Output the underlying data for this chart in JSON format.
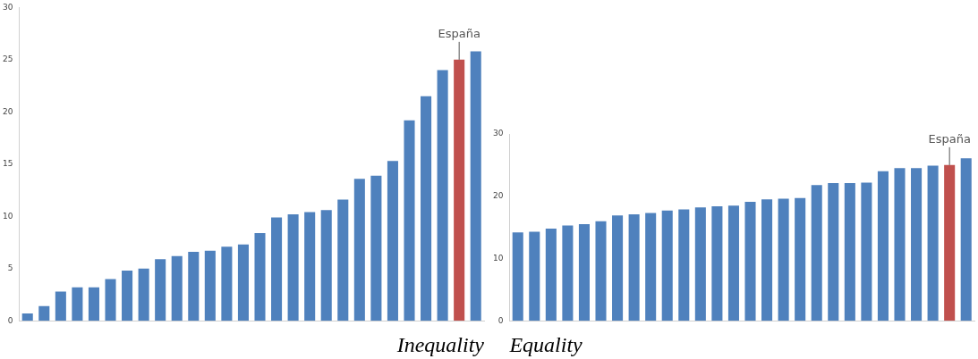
{
  "chart_data": [
    {
      "type": "bar",
      "xlabel": "Inequality",
      "categories": [
        null,
        null,
        null,
        null,
        null,
        null,
        null,
        null,
        null,
        null,
        null,
        null,
        null,
        null,
        null,
        null,
        null,
        null,
        null,
        null,
        null,
        null,
        null,
        null,
        null,
        null,
        null,
        null
      ],
      "values": [
        0.7,
        1.4,
        2.8,
        3.2,
        3.2,
        4.0,
        4.8,
        5.0,
        5.9,
        6.2,
        6.6,
        6.7,
        7.1,
        7.3,
        8.4,
        9.9,
        10.2,
        10.4,
        10.6,
        11.6,
        13.6,
        13.9,
        15.3,
        19.2,
        21.5,
        24.0,
        25.0,
        25.8
      ],
      "colors": [
        "#4f81bd",
        "#4f81bd",
        "#4f81bd",
        "#4f81bd",
        "#4f81bd",
        "#4f81bd",
        "#4f81bd",
        "#4f81bd",
        "#4f81bd",
        "#4f81bd",
        "#4f81bd",
        "#4f81bd",
        "#4f81bd",
        "#4f81bd",
        "#4f81bd",
        "#4f81bd",
        "#4f81bd",
        "#4f81bd",
        "#4f81bd",
        "#4f81bd",
        "#4f81bd",
        "#4f81bd",
        "#4f81bd",
        "#4f81bd",
        "#4f81bd",
        "#4f81bd",
        "#c0504d",
        "#4f81bd"
      ],
      "ylim": [
        0,
        30
      ],
      "yticks": [
        0,
        5,
        10,
        15,
        20,
        25,
        30
      ],
      "grid": false,
      "legend": false,
      "annotations": [
        {
          "text": "España",
          "y": 25.0
        }
      ]
    },
    {
      "type": "bar",
      "xlabel": "Equality",
      "categories": [
        null,
        null,
        null,
        null,
        null,
        null,
        null,
        null,
        null,
        null,
        null,
        null,
        null,
        null,
        null,
        null,
        null,
        null,
        null,
        null,
        null,
        null,
        null,
        null,
        null,
        null,
        null,
        null
      ],
      "values": [
        14.2,
        14.3,
        14.8,
        15.3,
        15.5,
        16.0,
        16.9,
        17.1,
        17.3,
        17.7,
        17.9,
        18.2,
        18.4,
        18.5,
        19.1,
        19.5,
        19.6,
        19.7,
        21.8,
        22.1,
        22.1,
        22.2,
        24.0,
        24.5,
        24.5,
        24.9,
        25.0,
        26.1
      ],
      "colors": [
        "#4f81bd",
        "#4f81bd",
        "#4f81bd",
        "#4f81bd",
        "#4f81bd",
        "#4f81bd",
        "#4f81bd",
        "#4f81bd",
        "#4f81bd",
        "#4f81bd",
        "#4f81bd",
        "#4f81bd",
        "#4f81bd",
        "#4f81bd",
        "#4f81bd",
        "#4f81bd",
        "#4f81bd",
        "#4f81bd",
        "#4f81bd",
        "#4f81bd",
        "#4f81bd",
        "#4f81bd",
        "#4f81bd",
        "#4f81bd",
        "#4f81bd",
        "#4f81bd",
        "#c0504d",
        "#4f81bd"
      ],
      "ylim": [
        0,
        30
      ],
      "yticks": [
        0,
        10,
        20,
        30
      ],
      "grid": false,
      "legend": false,
      "annotations": [
        {
          "text": "España",
          "y": 25.0
        }
      ]
    }
  ]
}
